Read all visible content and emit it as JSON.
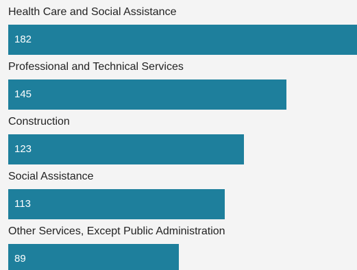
{
  "chart_data": {
    "type": "bar",
    "orientation": "horizontal",
    "categories": [
      "Health Care and Social Assistance",
      "Professional and Technical Services",
      "Construction",
      "Social Assistance",
      "Other Services, Except Public Administration"
    ],
    "values": [
      182,
      145,
      123,
      113,
      89
    ],
    "value_labels": [
      "182",
      "145",
      "123",
      "113",
      "89"
    ],
    "xlim": [
      0,
      182
    ],
    "grid": false,
    "legend": "none",
    "bar_color": "#1e7f9c",
    "label_color": "#222222",
    "value_label_color": "#ffffff",
    "background": "#f4f4f4"
  }
}
